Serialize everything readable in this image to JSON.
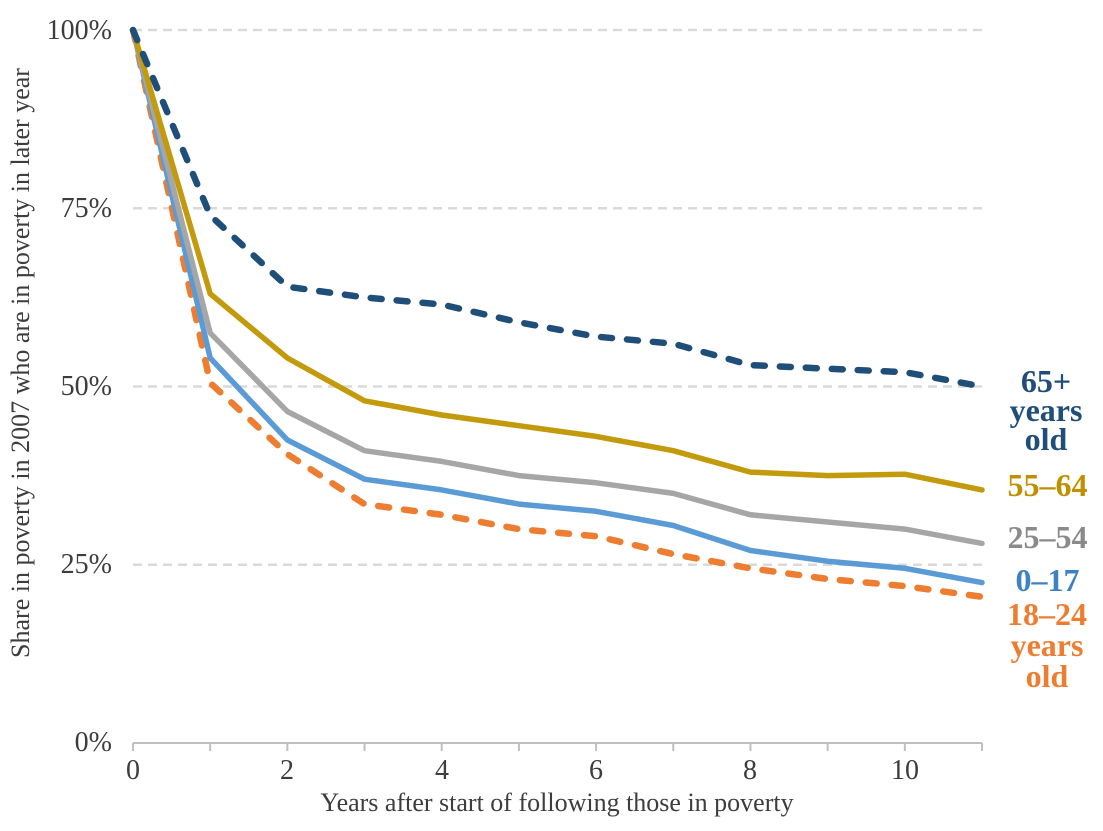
{
  "chart_data": {
    "type": "line",
    "title": "",
    "xlabel": "Years after start of following those in poverty",
    "ylabel": "Share in poverty in 2007 who are in poverty in later year",
    "xlim": [
      0,
      11
    ],
    "ylim": [
      0,
      100
    ],
    "grid": "horizontal dashed gridlines at 25%, 50%, 75%, 100%; solid baseline at 0%",
    "gridlines_pct": [
      25,
      50,
      75,
      100
    ],
    "x_tick_labels": [
      "0",
      "2",
      "4",
      "6",
      "8",
      "10"
    ],
    "x_tick_values_labeled": [
      0,
      2,
      4,
      6,
      8,
      10
    ],
    "x_minor_ticks_every": 1,
    "y_tick_labels": [
      "100%",
      "75%",
      "50%",
      "25%",
      "0%"
    ],
    "y_tick_values": [
      100,
      75,
      50,
      25,
      0
    ],
    "legend_position": "right of line ends, colored text labels",
    "colors": {
      "gridline": "#DADADA",
      "axis": "#BFBFBF",
      "tick_text": "#3D3D3D"
    },
    "x": [
      0,
      1,
      2,
      3,
      4,
      5,
      6,
      7,
      8,
      9,
      10,
      11
    ],
    "series": [
      {
        "id": "65-plus",
        "name": "65+ years old",
        "label_lines": [
          "65+",
          "years",
          "old"
        ],
        "color": "#1F4E79",
        "label_color": "#1F4E79",
        "style": "dashed",
        "values": [
          100,
          74,
          64,
          62.5,
          61.5,
          59,
          57,
          56,
          53,
          52.5,
          52,
          50
        ]
      },
      {
        "id": "55-64",
        "name": "55–64",
        "label_lines": [
          "55–64"
        ],
        "color": "#C29A0B",
        "label_color": "#BF9000",
        "style": "solid",
        "values": [
          100,
          63,
          54,
          48,
          46,
          44.5,
          43,
          41,
          38,
          37.5,
          37.7,
          35.5
        ]
      },
      {
        "id": "25-54",
        "name": "25–54",
        "label_lines": [
          "25–54"
        ],
        "color": "#A6A6A6",
        "label_color": "#8A8A8A",
        "style": "solid",
        "values": [
          100,
          57.5,
          46.5,
          41,
          39.5,
          37.5,
          36.5,
          35,
          32,
          31,
          30,
          28
        ]
      },
      {
        "id": "0-17",
        "name": "0–17",
        "label_lines": [
          "0–17"
        ],
        "color": "#5B9BD5",
        "label_color": "#3E82C4",
        "style": "solid",
        "values": [
          100,
          54,
          42.5,
          37,
          35.5,
          33.5,
          32.5,
          30.5,
          27,
          25.5,
          24.5,
          22.5
        ]
      },
      {
        "id": "18-24",
        "name": "18–24 years old",
        "label_lines": [
          "18–24",
          "years",
          "old"
        ],
        "color": "#ED7D31",
        "label_color": "#ED7D31",
        "style": "dashed",
        "values": [
          100,
          50.5,
          40.5,
          33.5,
          32,
          30,
          29,
          26.5,
          24.5,
          23,
          22,
          20.5
        ]
      }
    ]
  }
}
